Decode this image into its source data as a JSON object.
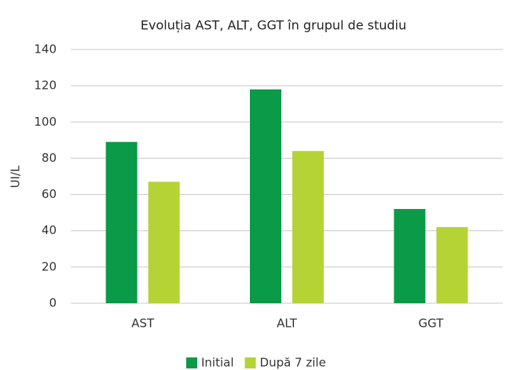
{
  "chart_data": {
    "type": "bar",
    "title": "Evoluția AST, ALT, GGT în grupul de studiu",
    "y_label": "UI/L",
    "categories": [
      "AST",
      "ALT",
      "GGT"
    ],
    "series": [
      {
        "name": "Initial",
        "color": "#0a9a48",
        "values": [
          89,
          118,
          52
        ]
      },
      {
        "name": "După 7 zile",
        "color": "#b5d334",
        "values": [
          67,
          84,
          42
        ]
      }
    ],
    "ylim": [
      0,
      140
    ],
    "yticks": [
      0,
      20,
      40,
      60,
      80,
      100,
      120,
      140
    ],
    "grid": true,
    "legend": "bottom"
  }
}
